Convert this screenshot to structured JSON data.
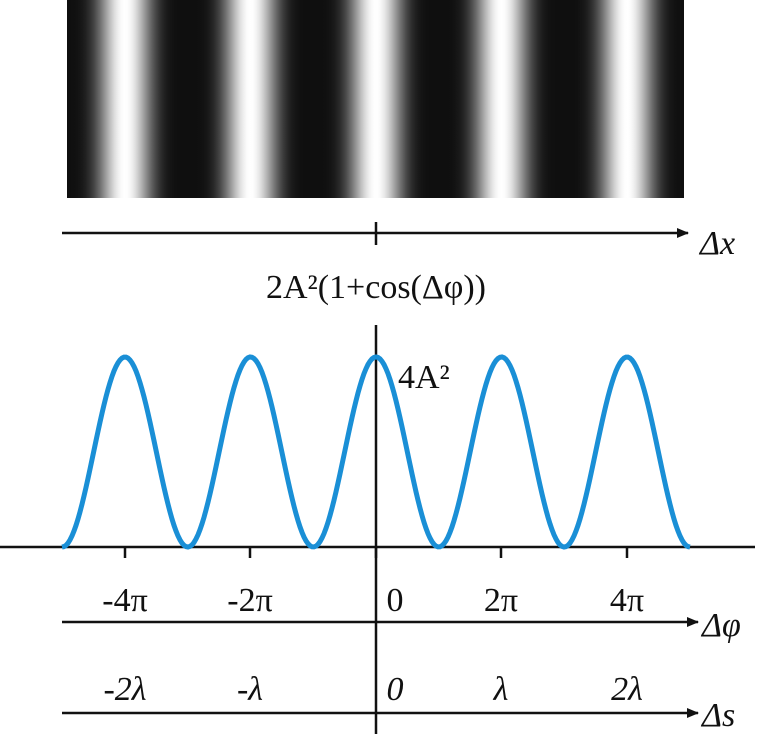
{
  "axes": {
    "x_label": "Δx",
    "phase_label": "Δφ",
    "path_label": "Δs"
  },
  "formula": "2A²(1+cos(Δφ))",
  "peak_label": "4A²",
  "phase_ticks": [
    "-4π",
    "-2π",
    "0",
    "2π",
    "4π"
  ],
  "path_ticks": [
    "-2λ",
    "-λ",
    "0",
    "λ",
    "2λ"
  ]
}
